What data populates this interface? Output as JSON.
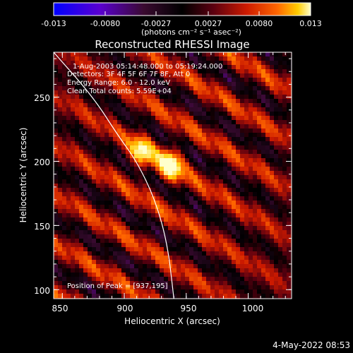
{
  "colorbar": {
    "ticks": [
      "-0.013",
      "-0.0080",
      "-0.0027",
      "0.0027",
      "0.0080",
      "0.013"
    ],
    "unit_label": "(photons cm⁻² s⁻¹ asec⁻²)",
    "range": [
      -0.013,
      0.013
    ],
    "colors": [
      "#0000ff",
      "#6600cc",
      "#3a0a30",
      "#000000",
      "#5a0010",
      "#cc1a00",
      "#ff6600",
      "#ffcc00",
      "#ffffcc"
    ]
  },
  "plot": {
    "title": "Reconstructed RHESSI Image",
    "info_lines": [
      "1-Aug-2003 05:14:48.000 to 05:19:24.000",
      "Detectors: 3F 4F 5F 6F 7F 8F, Att 0",
      "Energy Range: 6.0 - 12.0 keV",
      "Clean    Total counts: 5.59E+04"
    ],
    "peak_label": "Position of Peak = [937,195]",
    "xlabel": "Heliocentric X (arcsec)",
    "ylabel": "Heliocentric Y (arcsec)",
    "xticks": [
      "850",
      "900",
      "950",
      "1000"
    ],
    "yticks": [
      "100",
      "150",
      "200",
      "250"
    ]
  },
  "footer": {
    "timestamp": "4-May-2022 08:53"
  },
  "chart_data": {
    "type": "heatmap",
    "title": "Reconstructed RHESSI Image",
    "xlabel": "Heliocentric X (arcsec)",
    "ylabel": "Heliocentric Y (arcsec)",
    "xlim": [
      843,
      1035
    ],
    "ylim": [
      93,
      285
    ],
    "x_ticks": [
      850,
      900,
      950,
      1000
    ],
    "y_ticks": [
      100,
      150,
      200,
      250
    ],
    "value_range": [
      -0.013,
      0.013
    ],
    "peak_position": [
      937,
      195
    ],
    "sources": [
      {
        "x": 937,
        "y": 197,
        "peak": 0.013
      },
      {
        "x": 914,
        "y": 207,
        "peak": 0.0105
      }
    ],
    "limb_curve": [
      [
        843,
        285
      ],
      [
        875,
        250
      ],
      [
        895,
        220
      ],
      [
        910,
        200
      ],
      [
        925,
        170
      ],
      [
        935,
        135
      ],
      [
        940,
        93
      ]
    ]
  }
}
